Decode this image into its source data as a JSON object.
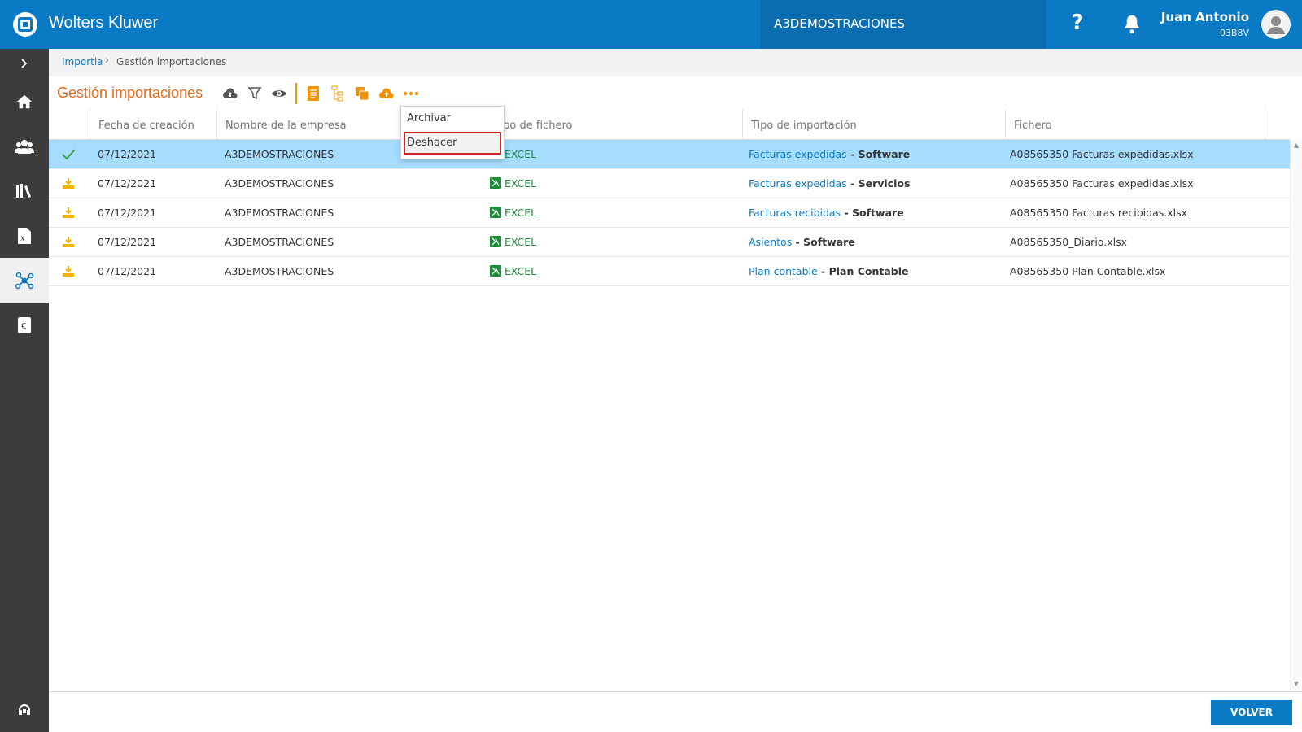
{
  "header": {
    "brand": "Wolters Kluwer",
    "company": "A3DEMOSTRACIONES",
    "help": "?",
    "user_name": "Juan Antonio",
    "user_code": "03B8V"
  },
  "sidebar": {
    "items": [
      {
        "icon": "chevron-right-icon"
      },
      {
        "icon": "home-icon"
      },
      {
        "icon": "users-icon"
      },
      {
        "icon": "library-icon"
      },
      {
        "icon": "document-icon"
      },
      {
        "icon": "network-icon",
        "active": true
      },
      {
        "icon": "euro-icon"
      }
    ],
    "bottom_icon": "support-icon"
  },
  "breadcrumb": {
    "parent": "Importia",
    "current": "Gestión importaciones"
  },
  "page": {
    "title": "Gestión importaciones"
  },
  "toolbar": {
    "icons": [
      "upload-cloud-icon",
      "filter-icon",
      "view-icon",
      "document-icon",
      "tree-icon",
      "copy-icon",
      "cloud-upload-orange-icon",
      "more-icon"
    ]
  },
  "table": {
    "columns": [
      "Fecha de creación",
      "Nombre de la empresa",
      "Tipo de fichero",
      "Tipo de importación",
      "Fichero"
    ],
    "rows": [
      {
        "status": "check",
        "date": "07/12/2021",
        "company": "A3DEMOSTRACIONES",
        "filetype": "EXCEL",
        "import_link": "Facturas expedidas",
        "import_sep": " - ",
        "import_type": "Software",
        "file": "A08565350 Facturas expedidas.xlsx",
        "selected": true
      },
      {
        "status": "pending",
        "date": "07/12/2021",
        "company": "A3DEMOSTRACIONES",
        "filetype": "EXCEL",
        "import_link": "Facturas expedidas",
        "import_sep": " - ",
        "import_type": "Servicios",
        "file": "A08565350 Facturas expedidas.xlsx"
      },
      {
        "status": "pending",
        "date": "07/12/2021",
        "company": "A3DEMOSTRACIONES",
        "filetype": "EXCEL",
        "import_link": "Facturas recibidas",
        "import_sep": " - ",
        "import_type": "Software",
        "file": "A08565350 Facturas recibidas.xlsx"
      },
      {
        "status": "pending",
        "date": "07/12/2021",
        "company": "A3DEMOSTRACIONES",
        "filetype": "EXCEL",
        "import_link": "Asientos",
        "import_sep": " - ",
        "import_type": "Software",
        "file": "A08565350_Diario.xlsx"
      },
      {
        "status": "pending",
        "date": "07/12/2021",
        "company": "A3DEMOSTRACIONES",
        "filetype": "EXCEL",
        "import_link": "Plan contable",
        "import_sep": " - ",
        "import_type": "Plan Contable",
        "file": "A08565350 Plan Contable.xlsx"
      }
    ]
  },
  "menu": {
    "items": [
      "Archivar",
      "Deshacer"
    ]
  },
  "footer": {
    "volver": "VOLVER"
  },
  "colors": {
    "primary": "#0a7ac4",
    "accent": "#e5681a",
    "selected_row": "#a6dcff",
    "excel": "#1e8a3c",
    "highlight_border": "#d2232a"
  }
}
